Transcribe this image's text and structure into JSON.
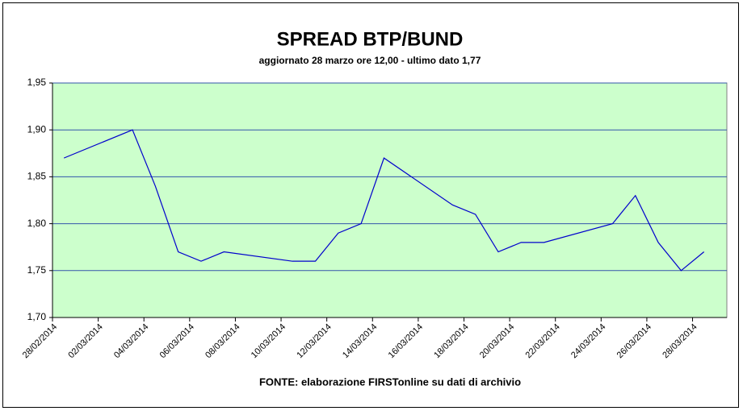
{
  "chart_data": {
    "type": "line",
    "title": "SPREAD BTP/BUND",
    "subtitle": "aggiornato 28 marzo ore 12,00 - ultimo dato 1,77",
    "source": "FONTE: elaborazione FIRSTonline su dati di archivio",
    "x": [
      "28/02/2014",
      "03/03/2014",
      "04/03/2014",
      "05/03/2014",
      "06/03/2014",
      "07/03/2014",
      "10/03/2014",
      "11/03/2014",
      "12/03/2014",
      "13/03/2014",
      "14/03/2014",
      "17/03/2014",
      "18/03/2014",
      "19/03/2014",
      "20/03/2014",
      "21/03/2014",
      "24/03/2014",
      "25/03/2014",
      "26/03/2014",
      "27/03/2014",
      "28/03/2014"
    ],
    "series": [
      {
        "name": "Spread",
        "color": "#0000cc",
        "values": [
          1.87,
          1.9,
          1.84,
          1.77,
          1.76,
          1.77,
          1.76,
          1.76,
          1.79,
          1.8,
          1.87,
          1.82,
          1.81,
          1.77,
          1.78,
          1.78,
          1.8,
          1.83,
          1.78,
          1.75,
          1.77
        ]
      }
    ],
    "xlim": [
      "28/02/2014",
      "29/03/2014"
    ],
    "xticks": [
      "28/02/2014",
      "02/03/2014",
      "04/03/2014",
      "06/03/2014",
      "08/03/2014",
      "10/03/2014",
      "12/03/2014",
      "14/03/2014",
      "16/03/2014",
      "18/03/2014",
      "20/03/2014",
      "22/03/2014",
      "24/03/2014",
      "26/03/2014",
      "28/03/2014"
    ],
    "ylim": [
      1.7,
      1.95
    ],
    "yticks": [
      {
        "value": 1.7,
        "label": "1,70"
      },
      {
        "value": 1.75,
        "label": "1,75"
      },
      {
        "value": 1.8,
        "label": "1,80"
      },
      {
        "value": 1.85,
        "label": "1,85"
      },
      {
        "value": 1.9,
        "label": "1,90"
      },
      {
        "value": 1.95,
        "label": "1,95"
      }
    ],
    "grid": true,
    "plot_background": "#ccffcc",
    "grid_color": "#3355aa"
  }
}
